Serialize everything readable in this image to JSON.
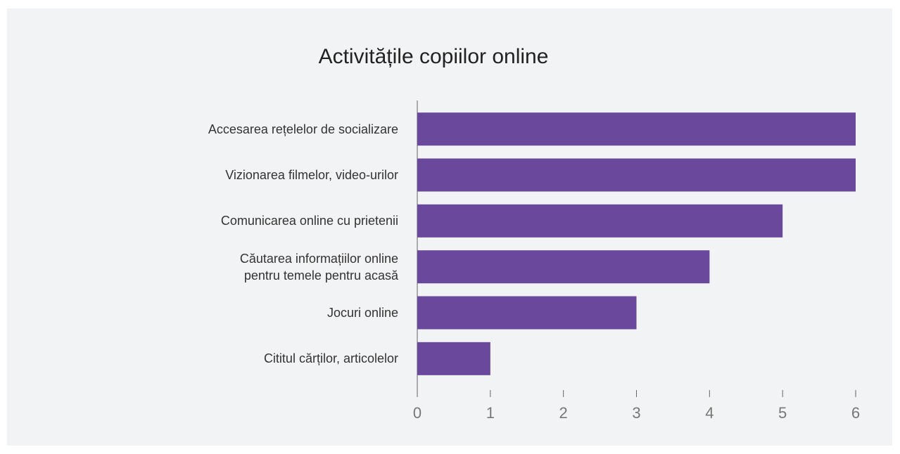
{
  "chart_data": {
    "type": "bar",
    "orientation": "horizontal",
    "title": "Activitățile copiilor online",
    "categories": [
      "Accesarea rețelelor de socializare",
      "Vizionarea filmelor, video-urilor",
      "Comunicarea online cu prietenii",
      "Căutarea informațiilor online\npentru temele pentru acasă",
      "Jocuri online",
      "Cititul cărților, articolelor"
    ],
    "values": [
      6,
      6,
      5,
      4,
      3,
      1
    ],
    "color": "#6a489c",
    "xlim": [
      0,
      6
    ],
    "xticks": [
      0,
      1,
      2,
      3,
      4,
      5,
      6
    ],
    "grid": false
  }
}
